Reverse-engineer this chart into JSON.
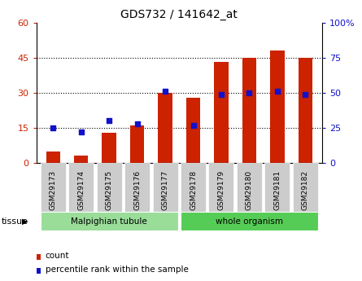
{
  "title": "GDS732 / 141642_at",
  "samples": [
    "GSM29173",
    "GSM29174",
    "GSM29175",
    "GSM29176",
    "GSM29177",
    "GSM29178",
    "GSM29179",
    "GSM29180",
    "GSM29181",
    "GSM29182"
  ],
  "counts": [
    5,
    3,
    13,
    16,
    30,
    28,
    43,
    45,
    48,
    45
  ],
  "percentile": [
    25,
    22,
    30,
    28,
    51,
    27,
    49,
    50,
    51,
    49
  ],
  "tissue_groups": [
    {
      "label": "Malpighian tubule",
      "start": 0,
      "end": 4,
      "color": "#99dd99"
    },
    {
      "label": "whole organism",
      "start": 5,
      "end": 9,
      "color": "#55cc55"
    }
  ],
  "bar_color": "#cc2200",
  "dot_color": "#1111cc",
  "left_axis_color": "#cc2200",
  "right_axis_color": "#1111cc",
  "ylim_left": [
    0,
    60
  ],
  "ylim_right": [
    0,
    100
  ],
  "yticks_left": [
    0,
    15,
    30,
    45,
    60
  ],
  "ytick_labels_left": [
    "0",
    "15",
    "30",
    "45",
    "60"
  ],
  "yticks_right": [
    0,
    25,
    50,
    75,
    100
  ],
  "ytick_labels_right": [
    "0",
    "25",
    "50",
    "75",
    "100%"
  ],
  "grid_values": [
    15,
    30,
    45
  ],
  "tick_bg_color": "#cccccc",
  "legend_count_color": "#cc2200",
  "legend_pct_color": "#1111cc",
  "legend_count_label": "count",
  "legend_pct_label": "percentile rank within the sample",
  "tissue_label": "tissue",
  "bar_width": 0.5,
  "dot_size": 25
}
